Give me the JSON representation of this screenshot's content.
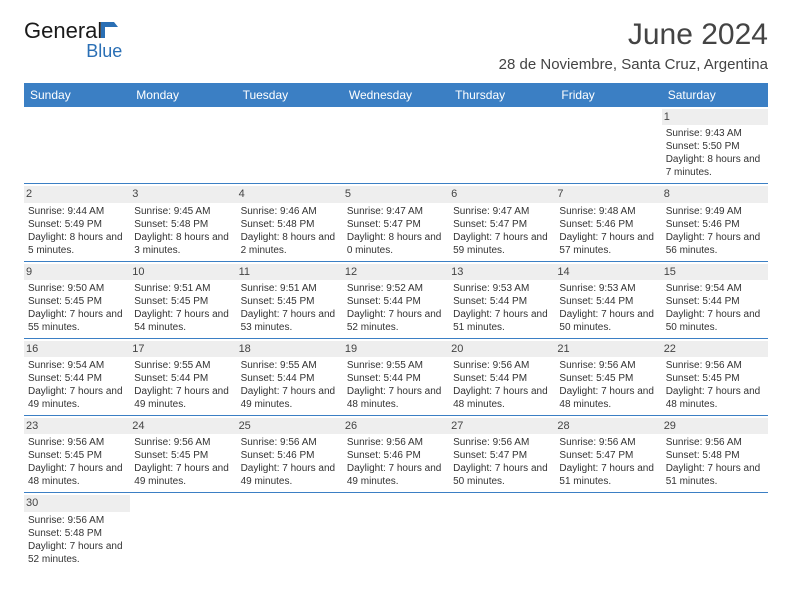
{
  "logo": {
    "word1": "General",
    "word2": "Blue",
    "icon_color": "#2a6fb5"
  },
  "header": {
    "month_title": "June 2024",
    "location": "28 de Noviembre, Santa Cruz, Argentina"
  },
  "colors": {
    "header_bg": "#3b7fc4",
    "header_fg": "#ffffff",
    "cell_border": "#3b7fc4",
    "daynum_bg": "#eeeeee",
    "text": "#333333"
  },
  "day_headers": [
    "Sunday",
    "Monday",
    "Tuesday",
    "Wednesday",
    "Thursday",
    "Friday",
    "Saturday"
  ],
  "weeks": [
    [
      {
        "empty": true
      },
      {
        "empty": true
      },
      {
        "empty": true
      },
      {
        "empty": true
      },
      {
        "empty": true
      },
      {
        "empty": true
      },
      {
        "day": "1",
        "sunrise": "Sunrise: 9:43 AM",
        "sunset": "Sunset: 5:50 PM",
        "daylight": "Daylight: 8 hours and 7 minutes."
      }
    ],
    [
      {
        "day": "2",
        "sunrise": "Sunrise: 9:44 AM",
        "sunset": "Sunset: 5:49 PM",
        "daylight": "Daylight: 8 hours and 5 minutes."
      },
      {
        "day": "3",
        "sunrise": "Sunrise: 9:45 AM",
        "sunset": "Sunset: 5:48 PM",
        "daylight": "Daylight: 8 hours and 3 minutes."
      },
      {
        "day": "4",
        "sunrise": "Sunrise: 9:46 AM",
        "sunset": "Sunset: 5:48 PM",
        "daylight": "Daylight: 8 hours and 2 minutes."
      },
      {
        "day": "5",
        "sunrise": "Sunrise: 9:47 AM",
        "sunset": "Sunset: 5:47 PM",
        "daylight": "Daylight: 8 hours and 0 minutes."
      },
      {
        "day": "6",
        "sunrise": "Sunrise: 9:47 AM",
        "sunset": "Sunset: 5:47 PM",
        "daylight": "Daylight: 7 hours and 59 minutes."
      },
      {
        "day": "7",
        "sunrise": "Sunrise: 9:48 AM",
        "sunset": "Sunset: 5:46 PM",
        "daylight": "Daylight: 7 hours and 57 minutes."
      },
      {
        "day": "8",
        "sunrise": "Sunrise: 9:49 AM",
        "sunset": "Sunset: 5:46 PM",
        "daylight": "Daylight: 7 hours and 56 minutes."
      }
    ],
    [
      {
        "day": "9",
        "sunrise": "Sunrise: 9:50 AM",
        "sunset": "Sunset: 5:45 PM",
        "daylight": "Daylight: 7 hours and 55 minutes."
      },
      {
        "day": "10",
        "sunrise": "Sunrise: 9:51 AM",
        "sunset": "Sunset: 5:45 PM",
        "daylight": "Daylight: 7 hours and 54 minutes."
      },
      {
        "day": "11",
        "sunrise": "Sunrise: 9:51 AM",
        "sunset": "Sunset: 5:45 PM",
        "daylight": "Daylight: 7 hours and 53 minutes."
      },
      {
        "day": "12",
        "sunrise": "Sunrise: 9:52 AM",
        "sunset": "Sunset: 5:44 PM",
        "daylight": "Daylight: 7 hours and 52 minutes."
      },
      {
        "day": "13",
        "sunrise": "Sunrise: 9:53 AM",
        "sunset": "Sunset: 5:44 PM",
        "daylight": "Daylight: 7 hours and 51 minutes."
      },
      {
        "day": "14",
        "sunrise": "Sunrise: 9:53 AM",
        "sunset": "Sunset: 5:44 PM",
        "daylight": "Daylight: 7 hours and 50 minutes."
      },
      {
        "day": "15",
        "sunrise": "Sunrise: 9:54 AM",
        "sunset": "Sunset: 5:44 PM",
        "daylight": "Daylight: 7 hours and 50 minutes."
      }
    ],
    [
      {
        "day": "16",
        "sunrise": "Sunrise: 9:54 AM",
        "sunset": "Sunset: 5:44 PM",
        "daylight": "Daylight: 7 hours and 49 minutes."
      },
      {
        "day": "17",
        "sunrise": "Sunrise: 9:55 AM",
        "sunset": "Sunset: 5:44 PM",
        "daylight": "Daylight: 7 hours and 49 minutes."
      },
      {
        "day": "18",
        "sunrise": "Sunrise: 9:55 AM",
        "sunset": "Sunset: 5:44 PM",
        "daylight": "Daylight: 7 hours and 49 minutes."
      },
      {
        "day": "19",
        "sunrise": "Sunrise: 9:55 AM",
        "sunset": "Sunset: 5:44 PM",
        "daylight": "Daylight: 7 hours and 48 minutes."
      },
      {
        "day": "20",
        "sunrise": "Sunrise: 9:56 AM",
        "sunset": "Sunset: 5:44 PM",
        "daylight": "Daylight: 7 hours and 48 minutes."
      },
      {
        "day": "21",
        "sunrise": "Sunrise: 9:56 AM",
        "sunset": "Sunset: 5:45 PM",
        "daylight": "Daylight: 7 hours and 48 minutes."
      },
      {
        "day": "22",
        "sunrise": "Sunrise: 9:56 AM",
        "sunset": "Sunset: 5:45 PM",
        "daylight": "Daylight: 7 hours and 48 minutes."
      }
    ],
    [
      {
        "day": "23",
        "sunrise": "Sunrise: 9:56 AM",
        "sunset": "Sunset: 5:45 PM",
        "daylight": "Daylight: 7 hours and 48 minutes."
      },
      {
        "day": "24",
        "sunrise": "Sunrise: 9:56 AM",
        "sunset": "Sunset: 5:45 PM",
        "daylight": "Daylight: 7 hours and 49 minutes."
      },
      {
        "day": "25",
        "sunrise": "Sunrise: 9:56 AM",
        "sunset": "Sunset: 5:46 PM",
        "daylight": "Daylight: 7 hours and 49 minutes."
      },
      {
        "day": "26",
        "sunrise": "Sunrise: 9:56 AM",
        "sunset": "Sunset: 5:46 PM",
        "daylight": "Daylight: 7 hours and 49 minutes."
      },
      {
        "day": "27",
        "sunrise": "Sunrise: 9:56 AM",
        "sunset": "Sunset: 5:47 PM",
        "daylight": "Daylight: 7 hours and 50 minutes."
      },
      {
        "day": "28",
        "sunrise": "Sunrise: 9:56 AM",
        "sunset": "Sunset: 5:47 PM",
        "daylight": "Daylight: 7 hours and 51 minutes."
      },
      {
        "day": "29",
        "sunrise": "Sunrise: 9:56 AM",
        "sunset": "Sunset: 5:48 PM",
        "daylight": "Daylight: 7 hours and 51 minutes."
      }
    ],
    [
      {
        "day": "30",
        "sunrise": "Sunrise: 9:56 AM",
        "sunset": "Sunset: 5:48 PM",
        "daylight": "Daylight: 7 hours and 52 minutes."
      },
      {
        "empty": true
      },
      {
        "empty": true
      },
      {
        "empty": true
      },
      {
        "empty": true
      },
      {
        "empty": true
      },
      {
        "empty": true
      }
    ]
  ]
}
